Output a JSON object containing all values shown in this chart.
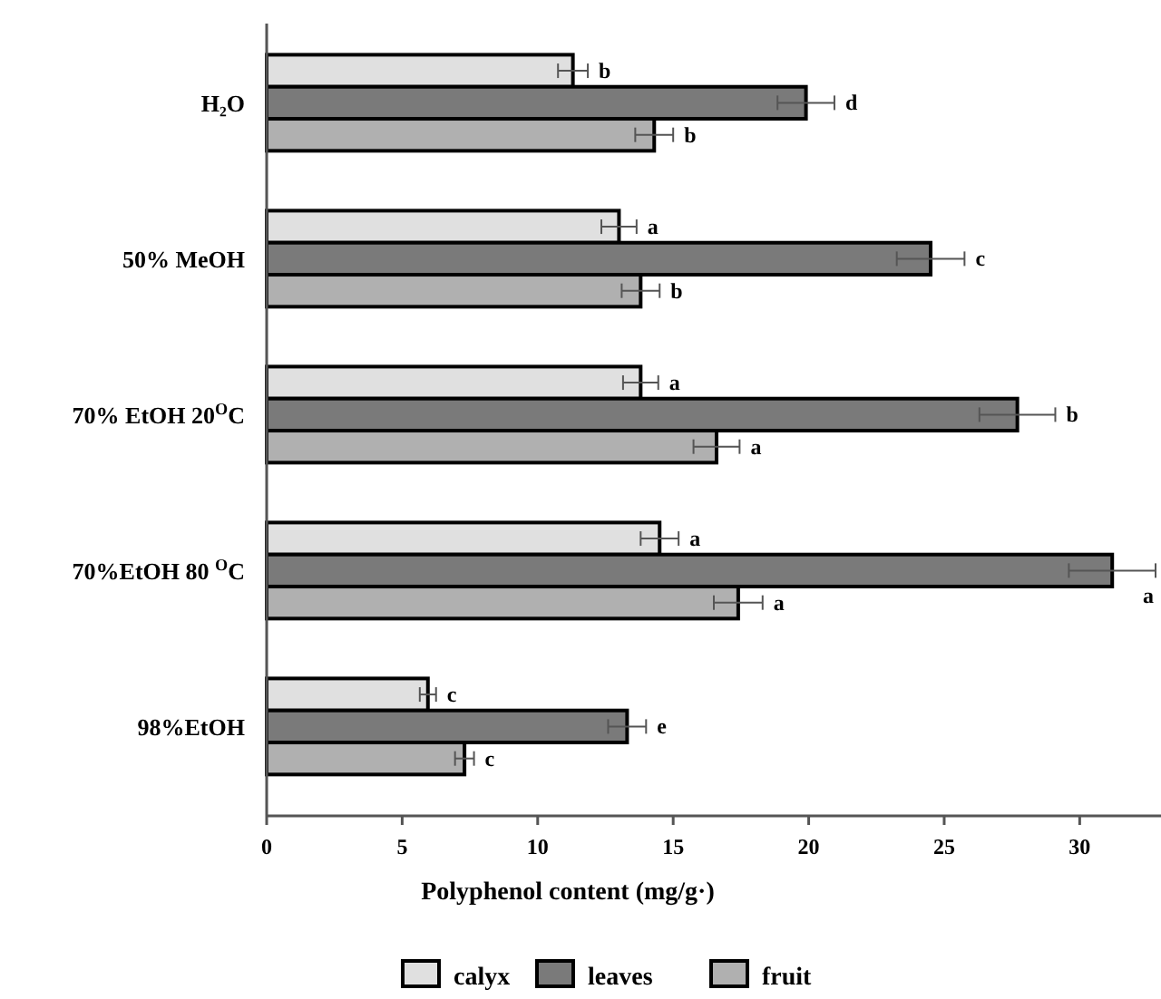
{
  "chart_data": {
    "type": "bar",
    "orientation": "horizontal",
    "xlabel": "Polyphenol content (mg/g·)",
    "categories": [
      "H₂O",
      "50% MeOH",
      "70% EtOH 20$^{O}$C",
      "70%EtOH 80 $^{O}$C",
      "98%EtOH"
    ],
    "series": [
      {
        "name": "calyx",
        "color": "#e0e0e0",
        "values": [
          11.3,
          13.0,
          13.8,
          14.5,
          5.95
        ],
        "errors": [
          0.55,
          0.65,
          0.65,
          0.7,
          0.3
        ],
        "value_labels": [
          "b",
          "a",
          "a",
          "a",
          "c"
        ]
      },
      {
        "name": "leaves",
        "color": "#7a7a7a",
        "values": [
          19.9,
          24.5,
          27.7,
          31.2,
          13.3
        ],
        "errors": [
          1.05,
          1.25,
          1.4,
          1.6,
          0.7
        ],
        "value_labels": [
          "d",
          "c",
          "b",
          "a",
          "e"
        ]
      },
      {
        "name": "fruit",
        "color": "#b0b0b0",
        "values": [
          14.3,
          13.8,
          16.6,
          17.4,
          7.3
        ],
        "errors": [
          0.7,
          0.7,
          0.85,
          0.9,
          0.35
        ],
        "value_labels": [
          "b",
          "b",
          "a",
          "a",
          "c"
        ]
      }
    ],
    "xlim": [
      0,
      33
    ],
    "xticks": [
      0,
      5,
      10,
      15,
      20,
      25,
      30
    ],
    "grid": false,
    "legend": "bottom"
  }
}
